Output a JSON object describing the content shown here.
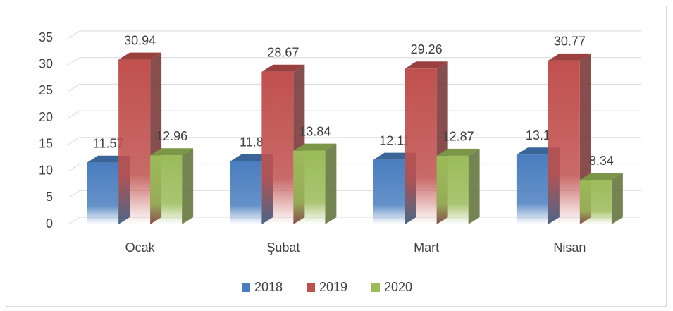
{
  "chart_data": {
    "type": "bar3d",
    "categories": [
      "Ocak",
      "Şubat",
      "Mart",
      "Nisan"
    ],
    "series": [
      {
        "name": "2018",
        "color": "#4a7ebf",
        "values": [
          11.57,
          11.8,
          12.11,
          13.1
        ]
      },
      {
        "name": "2019",
        "color": "#c0504d",
        "values": [
          30.94,
          28.67,
          29.26,
          30.77
        ]
      },
      {
        "name": "2020",
        "color": "#9bbb59",
        "values": [
          12.96,
          13.84,
          12.87,
          8.34
        ]
      }
    ],
    "ylim": [
      0,
      35
    ],
    "yticks": [
      0,
      5,
      10,
      15,
      20,
      25,
      30,
      35
    ],
    "grid": true,
    "legend": "bottom"
  }
}
